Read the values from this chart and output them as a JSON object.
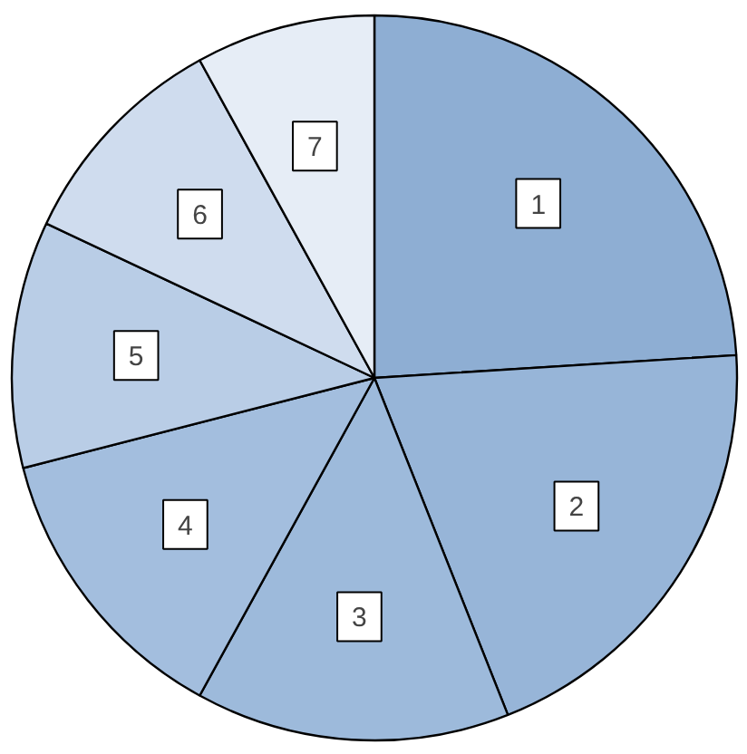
{
  "chart_data": {
    "type": "pie",
    "categories": [
      "1",
      "2",
      "3",
      "4",
      "5",
      "6",
      "7"
    ],
    "values": [
      24,
      20,
      14,
      13,
      11,
      10,
      8
    ],
    "colors": [
      "#8eaed3",
      "#97b5d8",
      "#9dbadb",
      "#a3bede",
      "#b9cde6",
      "#cfdcee",
      "#e6edf6"
    ]
  }
}
